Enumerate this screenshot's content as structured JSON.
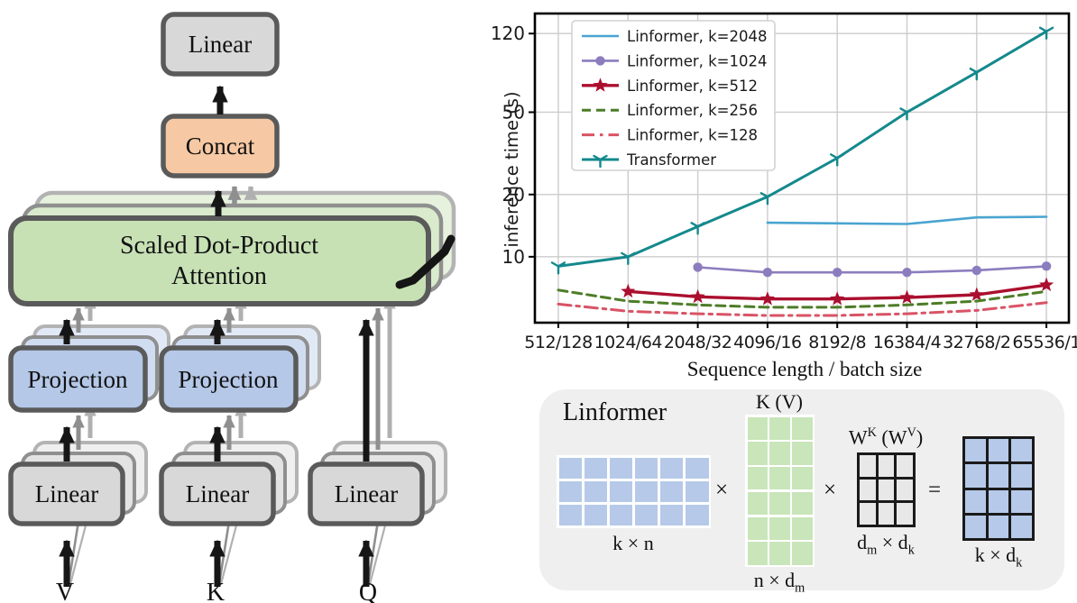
{
  "diagram": {
    "labels": {
      "linear": "Linear",
      "concat": "Concat",
      "attention_line1": "Scaled Dot-Product",
      "attention_line2": "Attention",
      "projection": "Projection"
    },
    "inputs": {
      "v": "V",
      "k": "K",
      "q": "Q"
    },
    "colors": {
      "linear_fill": "#d8d8d8",
      "concat_fill": "#f6c9a4",
      "attention_fill": "#c7e1b5",
      "projection_fill": "#b5c8e8",
      "box_border": "#5a5a5a"
    }
  },
  "chart_data": {
    "type": "line",
    "title": "",
    "xlabel": "Sequence length / batch size",
    "ylabel": "inference time (s)",
    "yscale": "log",
    "ylim": [
      4.8,
      150
    ],
    "yticks": [
      10,
      20,
      50,
      120
    ],
    "grid": true,
    "grid_color": "#cccccc",
    "legend_position": "upper left",
    "categories": [
      "512/128",
      "1024/64",
      "2048/32",
      "4096/16",
      "8192/8",
      "16384/4",
      "32768/2",
      "65536/1"
    ],
    "series": [
      {
        "name": "Linformer, k=2048",
        "color": "#4aa4d0",
        "dash": "",
        "marker": "none",
        "width": 2.6,
        "values": [
          null,
          null,
          null,
          14.6,
          14.5,
          14.4,
          15.5,
          15.6
        ]
      },
      {
        "name": "Linformer, k=1024",
        "color": "#8c7dbe",
        "dash": "",
        "marker": "circle",
        "width": 2.6,
        "values": [
          null,
          null,
          8.9,
          8.4,
          8.4,
          8.4,
          8.6,
          9.0
        ]
      },
      {
        "name": "Linformer, k=512",
        "color": "#ab0f2e",
        "dash": "",
        "marker": "star",
        "width": 3.4,
        "values": [
          null,
          6.8,
          6.4,
          6.25,
          6.25,
          6.35,
          6.55,
          7.3
        ]
      },
      {
        "name": "Linformer, k=256",
        "color": "#4c7d27",
        "dash": "10 6",
        "marker": "none",
        "width": 3,
        "values": [
          6.9,
          6.1,
          5.85,
          5.7,
          5.7,
          5.85,
          6.1,
          6.8
        ]
      },
      {
        "name": "Linformer, k=128",
        "color": "#d95365",
        "dash": "14 6 3.5 6",
        "marker": "none",
        "width": 3,
        "values": [
          5.9,
          5.45,
          5.3,
          5.2,
          5.2,
          5.3,
          5.5,
          6.0
        ]
      },
      {
        "name": "Transformer",
        "color": "#14898d",
        "dash": "",
        "marker": "tri",
        "width": 3,
        "values": [
          9.0,
          10.0,
          14.0,
          19.5,
          30.0,
          50.0,
          78.0,
          123.0
        ]
      }
    ]
  },
  "linformer_panel": {
    "title": "Linformer",
    "operators": {
      "times": "×",
      "equals": "="
    },
    "matrices": [
      {
        "name": "projection-matrix",
        "cols": 6,
        "rows": 3,
        "color": "#b6c9e8",
        "border": "white",
        "label": [
          {
            "t": "k × n"
          }
        ]
      },
      {
        "name": "key-value-matrix",
        "cols": 3,
        "rows": 6,
        "color": "#c9e5ba",
        "border": "white",
        "title": [
          {
            "t": "K (V)"
          }
        ],
        "label": [
          {
            "t": "n × d"
          },
          {
            "t": "m",
            "sub": true
          }
        ]
      },
      {
        "name": "weight-matrix",
        "cols": 3,
        "rows": 3,
        "color": "#e8e8e8",
        "border": "black",
        "title": [
          {
            "t": "W"
          },
          {
            "t": "K",
            "sup": true
          },
          {
            "t": " (W"
          },
          {
            "t": "V",
            "sup": true
          },
          {
            "t": ")"
          }
        ],
        "label": [
          {
            "t": "d"
          },
          {
            "t": "m",
            "sub": true
          },
          {
            "t": " × d"
          },
          {
            "t": "k",
            "sub": true
          }
        ]
      },
      {
        "name": "result-matrix",
        "cols": 3,
        "rows": 4,
        "color": "#b6c9e8",
        "border": "black",
        "label": [
          {
            "t": "k × d"
          },
          {
            "t": "k",
            "sub": true
          }
        ]
      }
    ]
  }
}
